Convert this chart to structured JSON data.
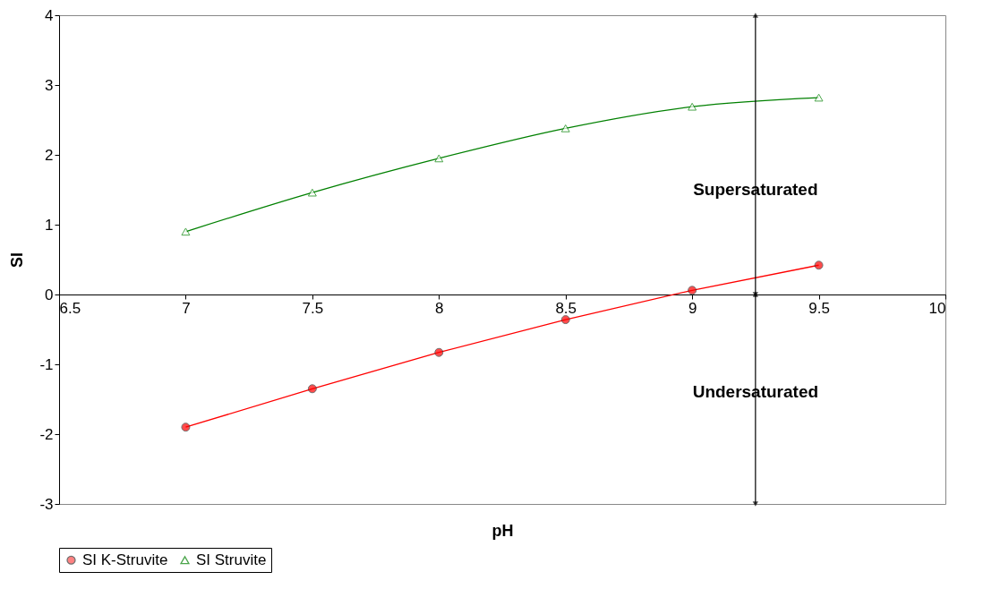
{
  "chart_data": {
    "type": "line",
    "xlabel": "pH",
    "ylabel": "SI",
    "x": [
      7,
      7.5,
      8,
      8.5,
      9,
      9.5
    ],
    "series": [
      {
        "name": "SI K-Struvite",
        "color": "#ff0000",
        "marker": "circle",
        "values": [
          -1.9,
          -1.35,
          -0.83,
          -0.36,
          0.06,
          0.42
        ]
      },
      {
        "name": "SI Struvite",
        "color": "#008000",
        "marker": "triangle",
        "values": [
          0.9,
          1.46,
          1.95,
          2.38,
          2.69,
          2.82
        ]
      }
    ],
    "xlim": [
      6.5,
      10
    ],
    "xticks": [
      6.5,
      7,
      7.5,
      8,
      8.5,
      9,
      9.5,
      10
    ],
    "ylim": [
      -3,
      4
    ],
    "yticks": [
      -3,
      -2,
      -1,
      0,
      1,
      2,
      3,
      4
    ],
    "annotations": [
      "Supersaturated",
      "Undersaturated"
    ],
    "grid": false,
    "legend": "bottom"
  }
}
